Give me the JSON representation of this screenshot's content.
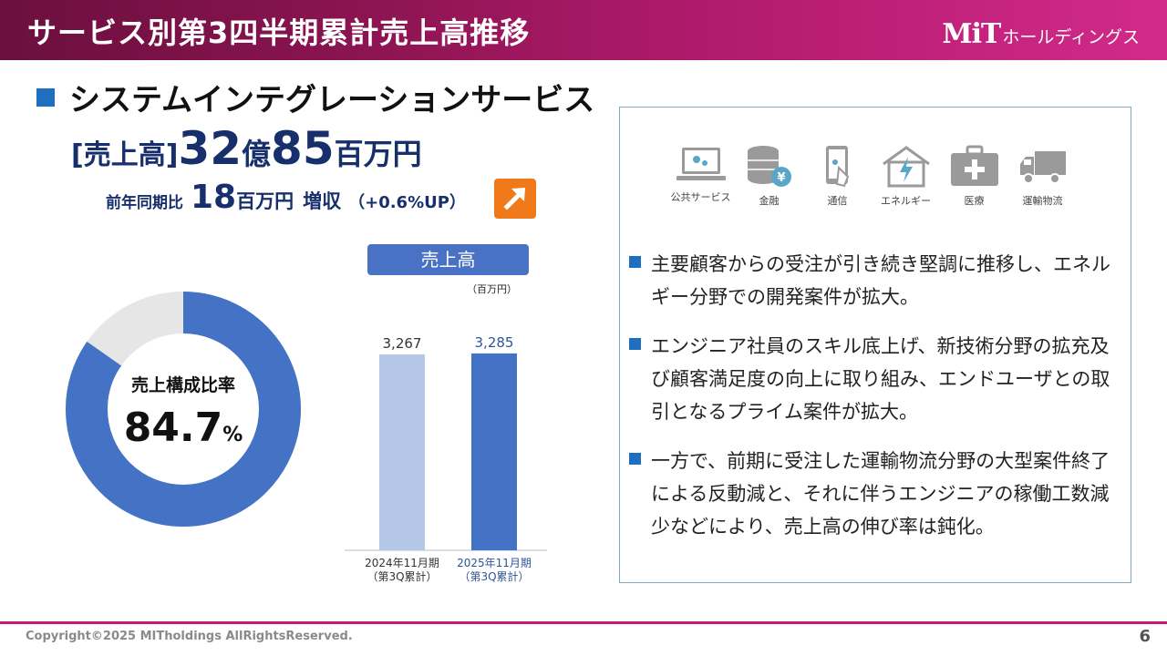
{
  "header": {
    "title": "サービス別第3四半期累計売上高推移",
    "logo_mark": "MiT",
    "logo_text": "ホールディングス"
  },
  "section": {
    "title": "システムインテグレーションサービス"
  },
  "sales": {
    "bracket_open": "[",
    "label": "売上高",
    "bracket_close": "]",
    "oku_value": "32",
    "oku_unit": "億",
    "million_value": "85",
    "million_unit": "百万円",
    "yoy_label": "前年同期比",
    "yoy_value": "18",
    "yoy_unit": "百万円",
    "yoy_direction": "増収",
    "yoy_pct": "（+0.6%UP）",
    "arrow_icon": "up-right-arrow-icon",
    "arrow_color": "#f07a1a"
  },
  "composition": {
    "label": "売上構成比率",
    "value": "84.7",
    "unit": "%",
    "share": 0.847,
    "main_color": "#4472c4",
    "rest_color": "#e6e6e6"
  },
  "bar_panel": {
    "title": "売上高",
    "unit": "（百万円）"
  },
  "chart_data": {
    "type": "bar",
    "title": "売上高",
    "unit": "百万円",
    "categories": [
      "2024年11月期（第3Q累計）",
      "2025年11月期（第3Q累計）"
    ],
    "category_lines": [
      [
        "2024年11月期",
        "（第3Q累計）"
      ],
      [
        "2025年11月期",
        "（第3Q累計）"
      ]
    ],
    "values": [
      3267,
      3285
    ],
    "value_labels": [
      "3,267",
      "3,285"
    ],
    "colors": [
      "#b4c7e7",
      "#4472c4"
    ],
    "label_colors": [
      "#333333",
      "#2f5597"
    ],
    "ylim": [
      0,
      3800
    ]
  },
  "industries": [
    {
      "label": "公共サービス",
      "icon": "laptop-icon"
    },
    {
      "label": "金融",
      "icon": "coins-icon"
    },
    {
      "label": "通信",
      "icon": "smartphone-icon"
    },
    {
      "label": "エネルギー",
      "icon": "house-lightning-icon"
    },
    {
      "label": "医療",
      "icon": "medical-kit-icon"
    },
    {
      "label": "運輸物流",
      "icon": "truck-icon"
    }
  ],
  "bullets": [
    "主要顧客からの受注が引き続き堅調に推移し、エネルギー分野での開発案件が拡大。",
    "エンジニア社員のスキル底上げ、新技術分野の拡充及び顧客満足度の向上に取り組み、エンドユーザとの取引となるプライム案件が拡大。",
    "一方で、前期に受注した運輸物流分野の大型案件終了による反動減と、それに伴うエンジニアの稼働工数減少などにより、売上高の伸び率は鈍化。"
  ],
  "footer": {
    "copyright": "Copyright©2025 MITholdings AllRightsReserved.",
    "page": "6"
  }
}
